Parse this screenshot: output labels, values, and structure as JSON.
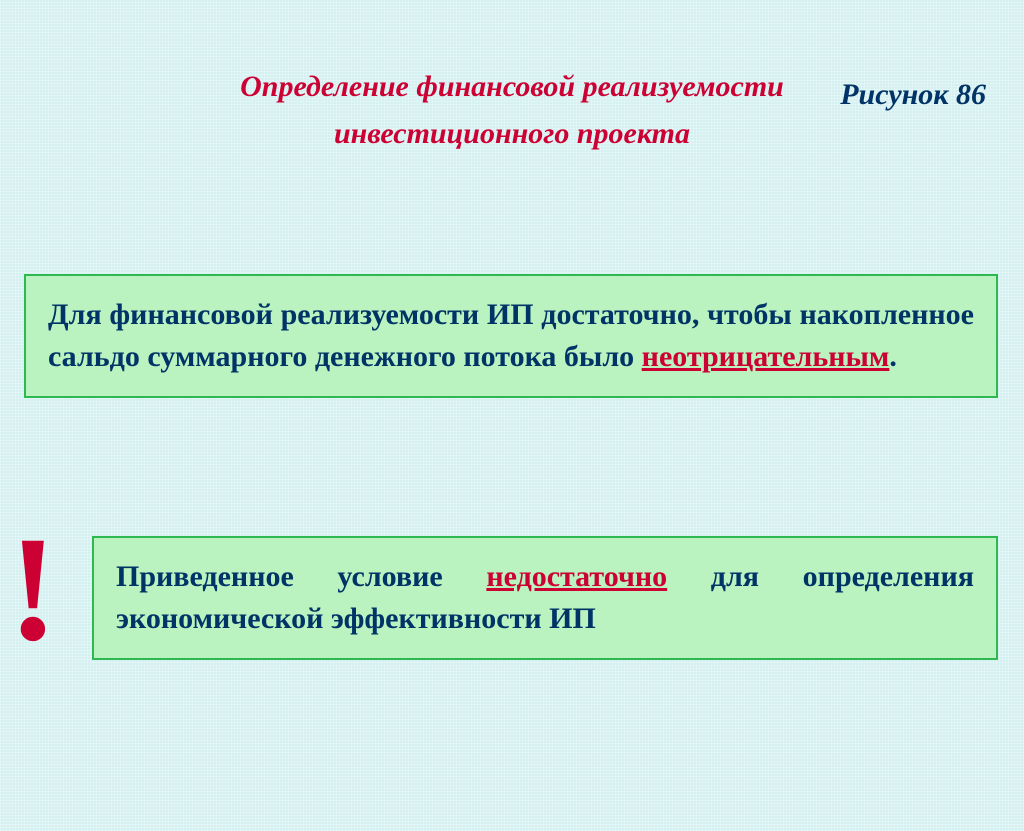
{
  "figure_label": "Рисунок 86",
  "title_line1": "Определение финансовой реализуемости",
  "title_line2": "инвестиционного проекта",
  "box1": {
    "text_before": "Для финансовой реализуемости ИП достаточно, чтобы накопленное сальдо суммарного денежного потока было ",
    "highlight": "неотрицательным",
    "text_after": "."
  },
  "box2": {
    "text_before": "Приведенное условие ",
    "highlight": "недостаточно",
    "text_after": " для определения экономической эффективности ИП"
  },
  "exclamation": "!",
  "styling": {
    "background_color": "#d4f0f0",
    "box_bg": "#baf2c0",
    "box_border": "#2fb84f",
    "title_color": "#cc0033",
    "body_text_color": "#003366",
    "highlight_color": "#cc0033",
    "figure_label_color": "#003366",
    "title_fontsize": 30,
    "body_fontsize": 30,
    "excl_fontsize": 150,
    "font_family": "Times New Roman",
    "font_style": "italic (headings), bold throughout"
  }
}
